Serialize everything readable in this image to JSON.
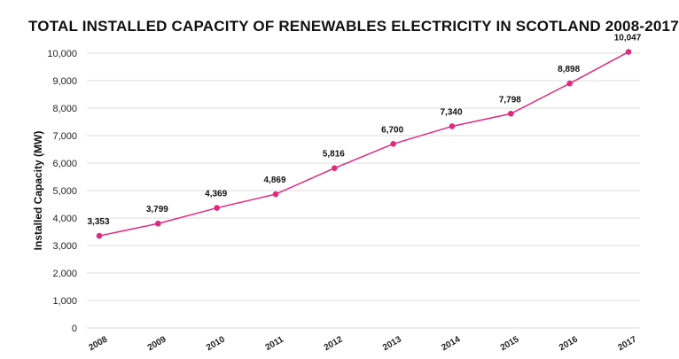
{
  "chart_data": {
    "type": "line",
    "title": "TOTAL INSTALLED CAPACITY OF RENEWABLES ELECTRICITY IN SCOTLAND 2008-2017",
    "xlabel": "",
    "ylabel": "Installed Capacity (MW)",
    "categories": [
      "2008",
      "2009",
      "2010",
      "2011",
      "2012",
      "2013",
      "2014",
      "2015",
      "2016",
      "2017"
    ],
    "values": [
      3353,
      3799,
      4369,
      4869,
      5816,
      6700,
      7340,
      7798,
      8898,
      10047
    ],
    "data_labels": [
      "3,353",
      "3,799",
      "4,369",
      "4,869",
      "5,816",
      "6,700",
      "7,340",
      "7,798",
      "8,898",
      "10,047"
    ],
    "ylim": [
      0,
      10000
    ],
    "y_ticks": [
      "0",
      "1,000",
      "2,000",
      "3,000",
      "4,000",
      "5,000",
      "6,000",
      "7,000",
      "8,000",
      "9,000",
      "10,000"
    ],
    "grid": true,
    "line_color": "#e0287f"
  }
}
